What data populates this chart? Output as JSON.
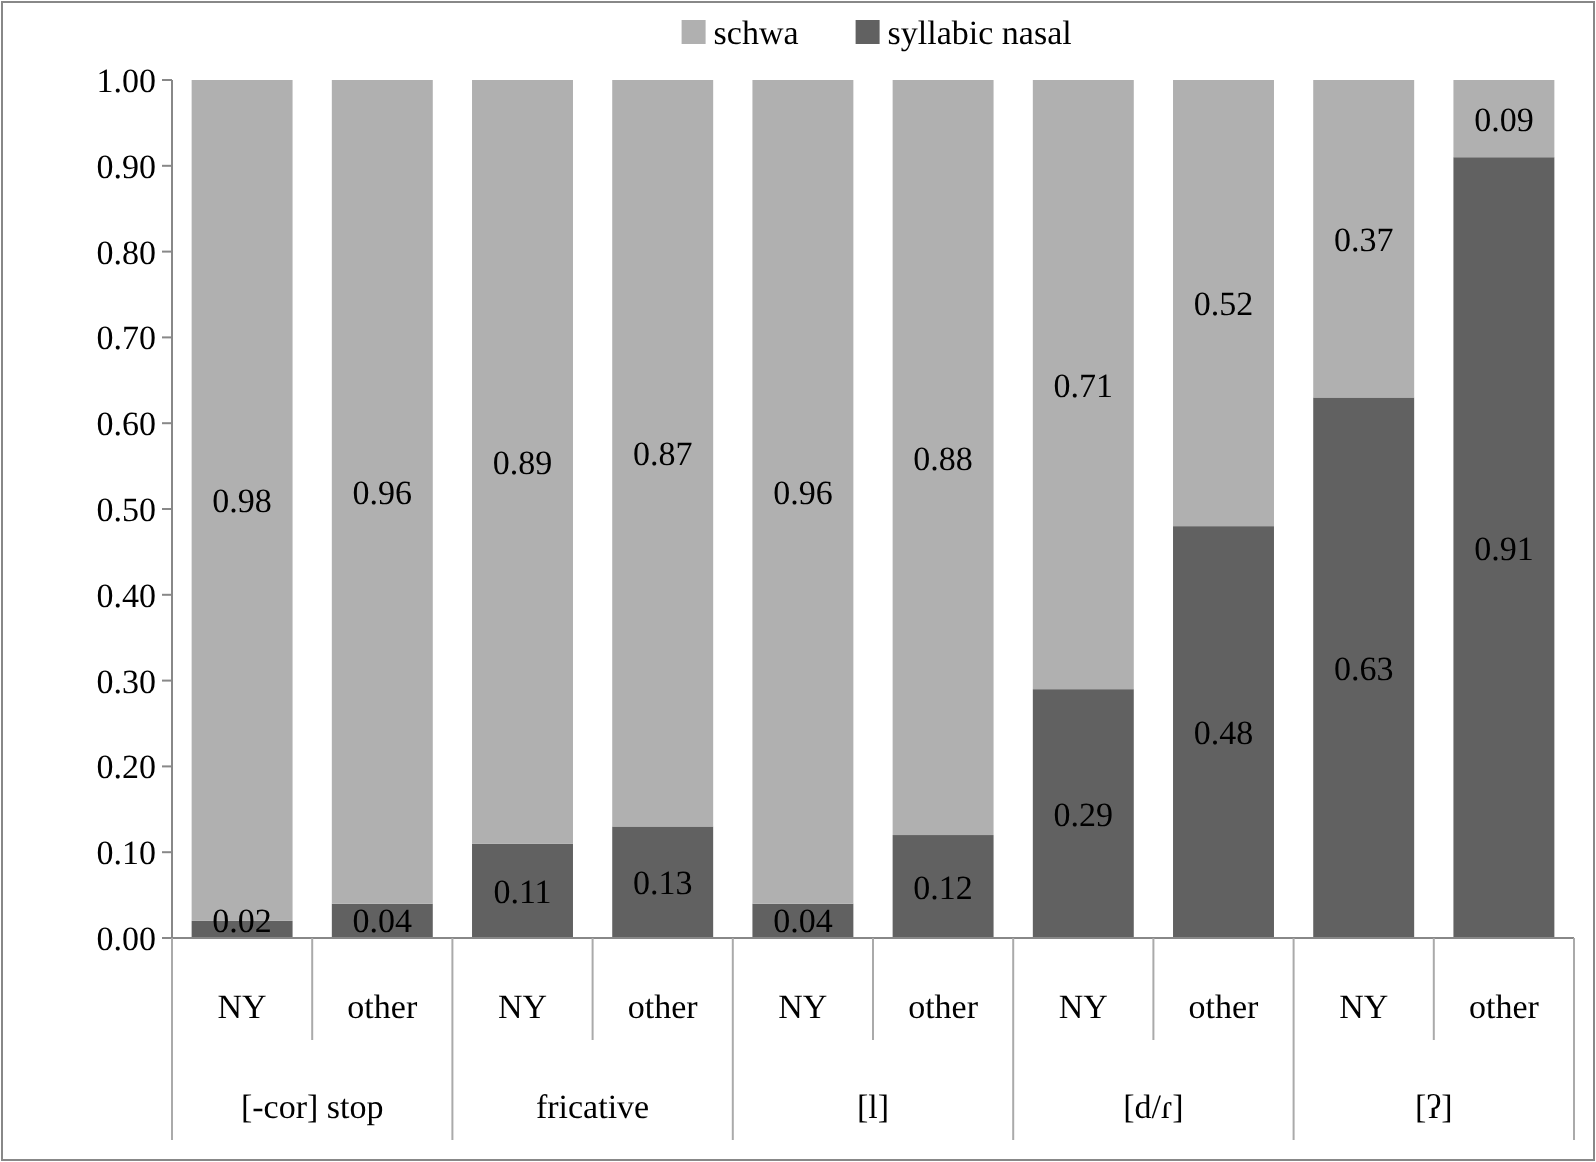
{
  "chart_data": {
    "type": "bar",
    "stacked": true,
    "data_labels": true,
    "legend": "top",
    "grid": false,
    "categories": [
      "NY",
      "other",
      "NY",
      "other",
      "NY",
      "other",
      "NY",
      "other",
      "NY",
      "other"
    ],
    "annotations": [
      "[-cor] stop",
      "fricative",
      "[l]",
      "[d/ɾ]",
      "[ʔ]"
    ],
    "ylim": [
      0,
      1
    ],
    "yticks": [
      {
        "value": 0,
        "label": "0.00"
      },
      {
        "value": 0.1,
        "label": "0.10"
      },
      {
        "value": 0.2,
        "label": "0.20"
      },
      {
        "value": 0.3,
        "label": "0.30"
      },
      {
        "value": 0.4,
        "label": "0.40"
      },
      {
        "value": 0.5,
        "label": "0.50"
      },
      {
        "value": 0.6,
        "label": "0.60"
      },
      {
        "value": 0.7,
        "label": "0.70"
      },
      {
        "value": 0.8,
        "label": "0.80"
      },
      {
        "value": 0.9,
        "label": "0.90"
      },
      {
        "value": 1,
        "label": "1.00"
      }
    ],
    "series": [
      {
        "name": "syllabic nasal",
        "color": "#616161",
        "values": [
          0.02,
          0.04,
          0.11,
          0.13,
          0.04,
          0.12,
          0.29,
          0.48,
          0.63,
          0.91
        ]
      },
      {
        "name": "schwa",
        "color": "#b0b0b0",
        "values": [
          0.98,
          0.96,
          0.89,
          0.87,
          0.96,
          0.88,
          0.71,
          0.52,
          0.37,
          0.09
        ]
      }
    ]
  }
}
